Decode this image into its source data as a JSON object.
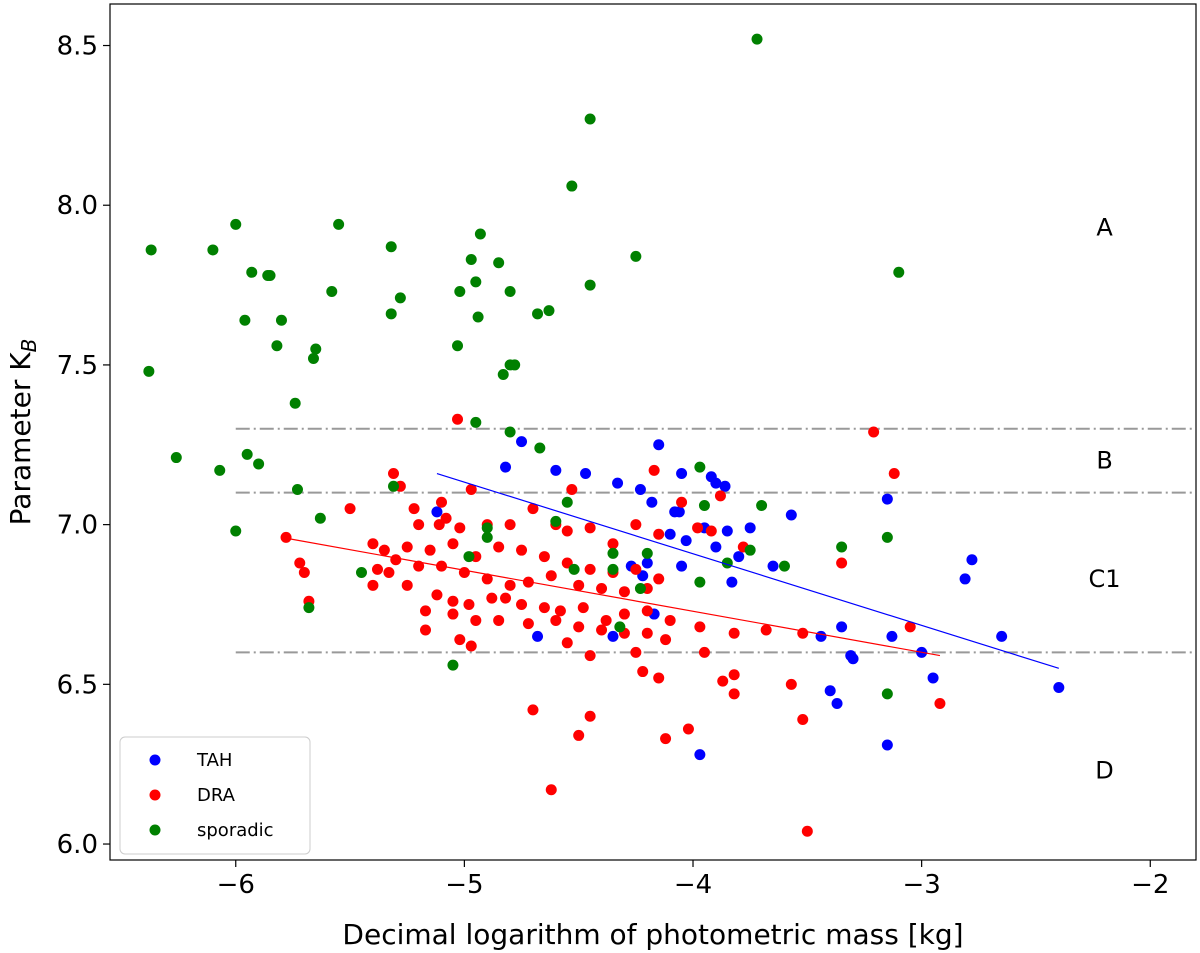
{
  "chart_data": {
    "type": "scatter",
    "xlabel": "Decimal logarithm of photometric mass [kg]",
    "ylabel_main": "Parameter K",
    "ylabel_sub": "B",
    "xlim": [
      -6.55,
      -1.8
    ],
    "ylim": [
      5.95,
      8.63
    ],
    "xticks": [
      -6,
      -5,
      -4,
      -3,
      -2
    ],
    "xtick_labels": [
      "−6",
      "−5",
      "−4",
      "−3",
      "−2"
    ],
    "yticks": [
      6.0,
      6.5,
      7.0,
      7.5,
      8.0,
      8.5
    ],
    "ytick_labels": [
      "6.0",
      "6.5",
      "7.0",
      "7.5",
      "8.0",
      "8.5"
    ],
    "reference_lines": [
      {
        "y": 7.3,
        "x_from": -6.0,
        "x_to": -1.8,
        "style": "dash-dot",
        "color": "#999999"
      },
      {
        "y": 7.1,
        "x_from": -6.0,
        "x_to": -1.8,
        "style": "dash-dot",
        "color": "#999999"
      },
      {
        "y": 6.6,
        "x_from": -6.0,
        "x_to": -1.8,
        "style": "dash-dot",
        "color": "#999999"
      }
    ],
    "region_labels": [
      {
        "text": "A",
        "x": -2.2,
        "y": 7.93
      },
      {
        "text": "B",
        "x": -2.2,
        "y": 7.2
      },
      {
        "text": "C1",
        "x": -2.2,
        "y": 6.83
      },
      {
        "text": "D",
        "x": -2.2,
        "y": 6.23
      }
    ],
    "fit_lines": [
      {
        "name": "TAH fit",
        "color": "#0000ff",
        "x": [
          -5.12,
          -2.4
        ],
        "y": [
          7.16,
          6.55
        ]
      },
      {
        "name": "DRA fit",
        "color": "#ff0000",
        "x": [
          -5.8,
          -2.92
        ],
        "y": [
          6.96,
          6.59
        ]
      }
    ],
    "legend_position": "lower-left",
    "series": [
      {
        "name": "TAH",
        "color": "#0000ff",
        "points": [
          [
            -5.12,
            7.04
          ],
          [
            -4.75,
            7.26
          ],
          [
            -4.82,
            7.18
          ],
          [
            -4.6,
            7.17
          ],
          [
            -4.47,
            7.16
          ],
          [
            -4.15,
            7.25
          ],
          [
            -4.05,
            7.16
          ],
          [
            -4.23,
            7.11
          ],
          [
            -4.18,
            7.07
          ],
          [
            -4.33,
            7.13
          ],
          [
            -3.92,
            7.15
          ],
          [
            -3.9,
            7.13
          ],
          [
            -3.86,
            7.12
          ],
          [
            -4.08,
            7.04
          ],
          [
            -4.06,
            7.04
          ],
          [
            -3.75,
            6.99
          ],
          [
            -4.1,
            6.97
          ],
          [
            -4.03,
            6.95
          ],
          [
            -4.2,
            6.88
          ],
          [
            -4.27,
            6.87
          ],
          [
            -4.22,
            6.84
          ],
          [
            -4.05,
            6.87
          ],
          [
            -3.95,
            6.99
          ],
          [
            -3.85,
            6.98
          ],
          [
            -3.9,
            6.93
          ],
          [
            -3.8,
            6.9
          ],
          [
            -3.65,
            6.87
          ],
          [
            -3.57,
            7.03
          ],
          [
            -3.15,
            7.08
          ],
          [
            -3.83,
            6.82
          ],
          [
            -4.17,
            6.72
          ],
          [
            -4.35,
            6.65
          ],
          [
            -4.68,
            6.65
          ],
          [
            -3.44,
            6.65
          ],
          [
            -3.35,
            6.68
          ],
          [
            -3.13,
            6.65
          ],
          [
            -3.31,
            6.59
          ],
          [
            -3.3,
            6.58
          ],
          [
            -3.0,
            6.6
          ],
          [
            -2.65,
            6.65
          ],
          [
            -2.78,
            6.89
          ],
          [
            -2.81,
            6.83
          ],
          [
            -3.4,
            6.48
          ],
          [
            -3.37,
            6.44
          ],
          [
            -2.95,
            6.52
          ],
          [
            -2.4,
            6.49
          ],
          [
            -3.15,
            6.31
          ],
          [
            -3.97,
            6.28
          ]
        ]
      },
      {
        "name": "DRA",
        "color": "#ff0000",
        "points": [
          [
            -5.03,
            7.33
          ],
          [
            -3.21,
            7.29
          ],
          [
            -4.17,
            7.17
          ],
          [
            -3.12,
            7.16
          ],
          [
            -5.31,
            7.16
          ],
          [
            -4.97,
            7.11
          ],
          [
            -5.28,
            7.12
          ],
          [
            -4.53,
            7.11
          ],
          [
            -5.1,
            7.07
          ],
          [
            -4.05,
            7.07
          ],
          [
            -3.88,
            7.09
          ],
          [
            -5.5,
            7.05
          ],
          [
            -5.22,
            7.05
          ],
          [
            -5.08,
            7.02
          ],
          [
            -5.2,
            7.0
          ],
          [
            -5.11,
            7.0
          ],
          [
            -5.02,
            6.99
          ],
          [
            -4.9,
            7.0
          ],
          [
            -4.8,
            7.0
          ],
          [
            -4.7,
            7.05
          ],
          [
            -4.6,
            7.0
          ],
          [
            -4.55,
            6.98
          ],
          [
            -4.45,
            6.99
          ],
          [
            -4.35,
            6.94
          ],
          [
            -4.25,
            7.0
          ],
          [
            -4.15,
            6.97
          ],
          [
            -5.78,
            6.96
          ],
          [
            -5.72,
            6.88
          ],
          [
            -5.4,
            6.94
          ],
          [
            -5.35,
            6.92
          ],
          [
            -5.25,
            6.93
          ],
          [
            -5.15,
            6.92
          ],
          [
            -5.05,
            6.94
          ],
          [
            -4.95,
            6.9
          ],
          [
            -4.85,
            6.93
          ],
          [
            -4.75,
            6.92
          ],
          [
            -4.65,
            6.9
          ],
          [
            -4.55,
            6.88
          ],
          [
            -4.45,
            6.86
          ],
          [
            -4.35,
            6.85
          ],
          [
            -4.25,
            6.86
          ],
          [
            -4.15,
            6.83
          ],
          [
            -3.98,
            6.99
          ],
          [
            -3.92,
            6.98
          ],
          [
            -3.78,
            6.93
          ],
          [
            -3.35,
            6.88
          ],
          [
            -5.7,
            6.85
          ],
          [
            -5.38,
            6.86
          ],
          [
            -5.33,
            6.85
          ],
          [
            -5.3,
            6.89
          ],
          [
            -5.2,
            6.87
          ],
          [
            -5.1,
            6.87
          ],
          [
            -5.0,
            6.85
          ],
          [
            -4.9,
            6.83
          ],
          [
            -4.8,
            6.81
          ],
          [
            -4.72,
            6.82
          ],
          [
            -4.62,
            6.84
          ],
          [
            -4.5,
            6.81
          ],
          [
            -4.4,
            6.8
          ],
          [
            -4.3,
            6.79
          ],
          [
            -4.2,
            6.8
          ],
          [
            -5.4,
            6.81
          ],
          [
            -5.25,
            6.81
          ],
          [
            -5.12,
            6.78
          ],
          [
            -5.05,
            6.76
          ],
          [
            -4.98,
            6.75
          ],
          [
            -4.88,
            6.77
          ],
          [
            -4.82,
            6.77
          ],
          [
            -4.75,
            6.75
          ],
          [
            -4.65,
            6.74
          ],
          [
            -4.58,
            6.73
          ],
          [
            -4.48,
            6.74
          ],
          [
            -4.38,
            6.7
          ],
          [
            -4.3,
            6.72
          ],
          [
            -4.2,
            6.73
          ],
          [
            -4.1,
            6.7
          ],
          [
            -5.17,
            6.73
          ],
          [
            -5.05,
            6.72
          ],
          [
            -4.95,
            6.7
          ],
          [
            -4.85,
            6.7
          ],
          [
            -4.72,
            6.69
          ],
          [
            -4.6,
            6.7
          ],
          [
            -4.5,
            6.68
          ],
          [
            -4.4,
            6.67
          ],
          [
            -4.3,
            6.66
          ],
          [
            -4.2,
            6.66
          ],
          [
            -4.12,
            6.64
          ],
          [
            -3.97,
            6.68
          ],
          [
            -3.82,
            6.66
          ],
          [
            -3.68,
            6.67
          ],
          [
            -3.52,
            6.66
          ],
          [
            -3.05,
            6.68
          ],
          [
            -5.68,
            6.76
          ],
          [
            -5.17,
            6.67
          ],
          [
            -5.02,
            6.64
          ],
          [
            -4.97,
            6.62
          ],
          [
            -4.55,
            6.63
          ],
          [
            -4.45,
            6.59
          ],
          [
            -4.25,
            6.6
          ],
          [
            -4.22,
            6.54
          ],
          [
            -4.15,
            6.52
          ],
          [
            -3.95,
            6.6
          ],
          [
            -3.82,
            6.53
          ],
          [
            -3.87,
            6.51
          ],
          [
            -3.57,
            6.5
          ],
          [
            -3.82,
            6.47
          ],
          [
            -3.52,
            6.39
          ],
          [
            -2.92,
            6.44
          ],
          [
            -4.7,
            6.42
          ],
          [
            -4.45,
            6.4
          ],
          [
            -4.5,
            6.34
          ],
          [
            -4.12,
            6.33
          ],
          [
            -4.02,
            6.36
          ],
          [
            -4.62,
            6.17
          ],
          [
            -3.5,
            6.04
          ]
        ]
      },
      {
        "name": "sporadic",
        "color": "#008000",
        "points": [
          [
            -3.72,
            8.52
          ],
          [
            -4.45,
            8.27
          ],
          [
            -4.53,
            8.06
          ],
          [
            -6.0,
            7.94
          ],
          [
            -5.55,
            7.94
          ],
          [
            -6.37,
            7.86
          ],
          [
            -6.1,
            7.86
          ],
          [
            -5.32,
            7.87
          ],
          [
            -4.93,
            7.91
          ],
          [
            -4.25,
            7.84
          ],
          [
            -5.93,
            7.79
          ],
          [
            -5.86,
            7.78
          ],
          [
            -5.85,
            7.78
          ],
          [
            -4.97,
            7.83
          ],
          [
            -4.85,
            7.82
          ],
          [
            -4.95,
            7.76
          ],
          [
            -4.45,
            7.75
          ],
          [
            -3.1,
            7.79
          ],
          [
            -5.58,
            7.73
          ],
          [
            -5.28,
            7.71
          ],
          [
            -5.02,
            7.73
          ],
          [
            -4.8,
            7.73
          ],
          [
            -5.96,
            7.64
          ],
          [
            -5.8,
            7.64
          ],
          [
            -5.32,
            7.66
          ],
          [
            -4.94,
            7.65
          ],
          [
            -4.68,
            7.66
          ],
          [
            -4.63,
            7.67
          ],
          [
            -5.82,
            7.56
          ],
          [
            -5.65,
            7.55
          ],
          [
            -5.66,
            7.52
          ],
          [
            -5.03,
            7.56
          ],
          [
            -4.78,
            7.5
          ],
          [
            -4.8,
            7.5
          ],
          [
            -4.83,
            7.47
          ],
          [
            -6.38,
            7.48
          ],
          [
            -5.74,
            7.38
          ],
          [
            -4.95,
            7.32
          ],
          [
            -4.8,
            7.29
          ],
          [
            -4.67,
            7.24
          ],
          [
            -6.26,
            7.21
          ],
          [
            -5.95,
            7.22
          ],
          [
            -5.9,
            7.19
          ],
          [
            -6.07,
            7.17
          ],
          [
            -3.97,
            7.18
          ],
          [
            -5.73,
            7.11
          ],
          [
            -5.31,
            7.12
          ],
          [
            -4.55,
            7.07
          ],
          [
            -3.95,
            7.06
          ],
          [
            -3.7,
            7.06
          ],
          [
            -5.63,
            7.02
          ],
          [
            -6.0,
            6.98
          ],
          [
            -4.9,
            6.99
          ],
          [
            -4.6,
            7.01
          ],
          [
            -4.9,
            6.96
          ],
          [
            -3.15,
            6.96
          ],
          [
            -3.35,
            6.93
          ],
          [
            -4.35,
            6.91
          ],
          [
            -4.2,
            6.91
          ],
          [
            -3.85,
            6.88
          ],
          [
            -3.75,
            6.92
          ],
          [
            -3.6,
            6.87
          ],
          [
            -4.98,
            6.9
          ],
          [
            -5.45,
            6.85
          ],
          [
            -4.52,
            6.86
          ],
          [
            -4.35,
            6.86
          ],
          [
            -4.23,
            6.8
          ],
          [
            -3.97,
            6.82
          ],
          [
            -5.68,
            6.74
          ],
          [
            -4.32,
            6.68
          ],
          [
            -5.05,
            6.56
          ],
          [
            -3.15,
            6.47
          ]
        ]
      }
    ]
  }
}
